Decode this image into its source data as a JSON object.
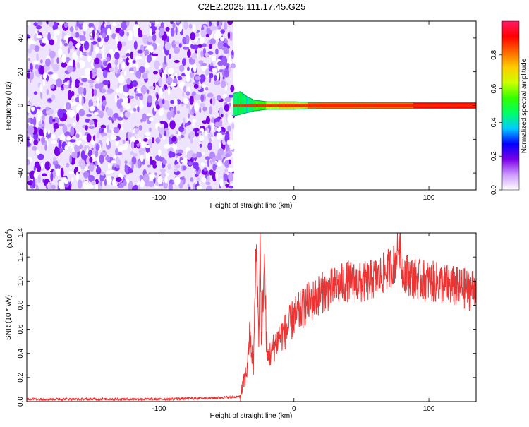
{
  "chart_data": [
    {
      "type": "heatmap",
      "title": "C2E2.2025.111.17.45.G25",
      "xlabel": "Height of straight line (km)",
      "ylabel": "Frequency (Hz)",
      "xlim": [
        -198,
        135
      ],
      "ylim": [
        -50,
        50
      ],
      "x_ticks": [
        -100,
        0,
        100
      ],
      "x_tick_labels": [
        "-100",
        "0",
        "100"
      ],
      "y_ticks": [
        -40,
        -20,
        0,
        20,
        40
      ],
      "y_tick_labels": [
        "-40",
        "-20",
        "0",
        "20",
        "40"
      ],
      "grid": false,
      "colorbar": {
        "label": "Normalized spectral amplitude",
        "range": [
          0,
          1
        ],
        "ticks": [
          0.0,
          0.2,
          0.4,
          0.6,
          0.8
        ],
        "tick_labels": [
          "0.0",
          "0.2",
          "0.4",
          "0.6",
          "0.8"
        ],
        "colors": [
          "#ffffff",
          "#cc99ff",
          "#7a00e6",
          "#0000ff",
          "#00ccff",
          "#00ff66",
          "#33ff00",
          "#ccff00",
          "#ffcc00",
          "#ff6600",
          "#ff0000",
          "#ff1a66"
        ]
      },
      "noise_region_x": [
        -198,
        -45
      ],
      "signal_band": [
        {
          "x": -45,
          "f_min": -6,
          "f_max": 7,
          "amplitude": 0.45
        },
        {
          "x": -40,
          "f_min": -5,
          "f_max": 8,
          "amplitude": 0.5
        },
        {
          "x": -35,
          "f_min": -4,
          "f_max": 5,
          "amplitude": 0.4
        },
        {
          "x": -30,
          "f_min": -3,
          "f_max": 3,
          "amplitude": 0.5
        },
        {
          "x": -20,
          "f_min": -2,
          "f_max": 2,
          "amplitude": 0.6
        },
        {
          "x": -10,
          "f_min": -2,
          "f_max": 2,
          "amplitude": 0.7
        },
        {
          "x": 0,
          "f_min": -2,
          "f_max": 2,
          "amplitude": 0.75
        },
        {
          "x": 20,
          "f_min": -1.5,
          "f_max": 1.5,
          "amplitude": 0.8
        },
        {
          "x": 50,
          "f_min": -1.5,
          "f_max": 1.5,
          "amplitude": 0.85
        },
        {
          "x": 80,
          "f_min": -1.5,
          "f_max": 1.5,
          "amplitude": 0.85
        },
        {
          "x": 110,
          "f_min": -1.5,
          "f_max": 1.5,
          "amplitude": 0.9
        },
        {
          "x": 135,
          "f_min": -1.5,
          "f_max": 1.5,
          "amplitude": 0.9
        }
      ]
    },
    {
      "type": "line",
      "xlabel": "Height of straight line (km)",
      "ylabel": "SNR (10 * v/v)",
      "y_multiplier_label": "(x10",
      "y_multiplier_exponent": "4",
      "y_multiplier_close": ")",
      "xlim": [
        -198,
        135
      ],
      "ylim": [
        0,
        1.4
      ],
      "x_ticks": [
        -100,
        0,
        100
      ],
      "x_tick_labels": [
        "-100",
        "0",
        "100"
      ],
      "y_ticks": [
        0.0,
        0.2,
        0.4,
        0.6,
        0.8,
        1.0,
        1.2,
        1.4
      ],
      "y_tick_labels": [
        "0.0",
        "0.2",
        "0.4",
        "0.6",
        "0.8",
        "1.0",
        "1.2",
        "1.4"
      ],
      "grid": false,
      "series": [
        {
          "color": "#ee3333",
          "x": [
            -198,
            -150,
            -100,
            -60,
            -40,
            -35,
            -33,
            -30,
            -28,
            -26,
            -25,
            -24,
            -22,
            -20,
            -15,
            -10,
            -5,
            0,
            5,
            10,
            15,
            20,
            25,
            30,
            40,
            50,
            60,
            65,
            70,
            75,
            78,
            80,
            85,
            90,
            100,
            110,
            120,
            130,
            135
          ],
          "y": [
            0.02,
            0.02,
            0.02,
            0.03,
            0.04,
            0.25,
            0.55,
            0.3,
            1.3,
            0.5,
            1.4,
            0.4,
            1.2,
            0.35,
            0.45,
            0.55,
            0.6,
            0.7,
            0.75,
            0.82,
            0.85,
            0.9,
            0.92,
            0.95,
            1.0,
            0.98,
            1.02,
            1.05,
            1.1,
            1.15,
            1.35,
            1.1,
            1.05,
            1.02,
            1.0,
            0.98,
            0.95,
            0.93,
            0.95
          ]
        }
      ]
    }
  ]
}
